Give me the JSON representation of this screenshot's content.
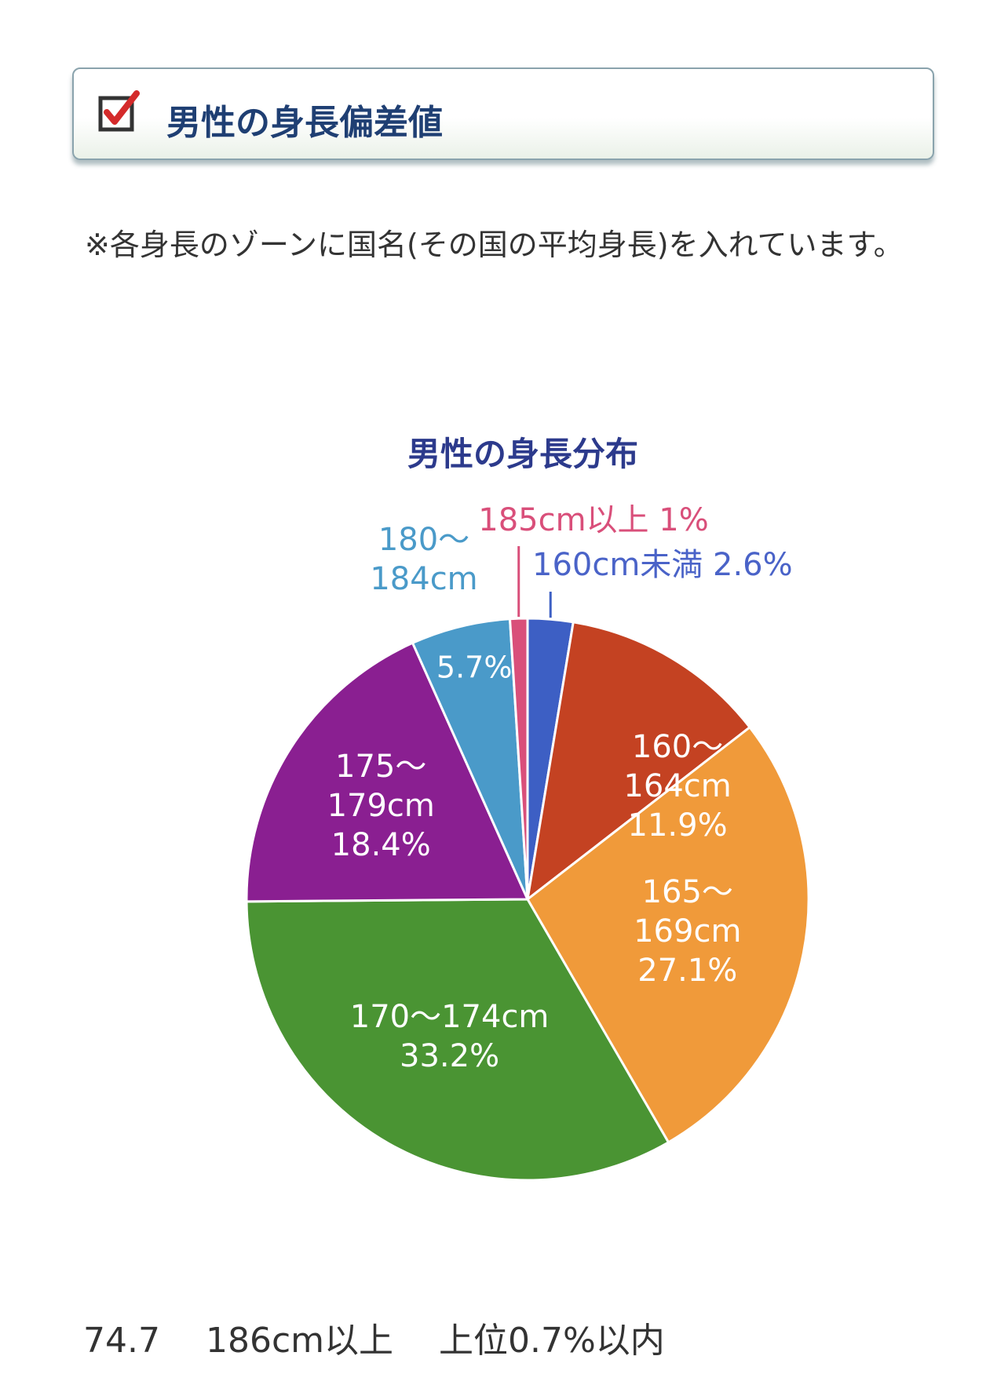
{
  "heading": {
    "title": "男性の身長偏差値",
    "icon": "checkbox-checked-icon"
  },
  "note": "※各身長のゾーンに国名(その国の平均身長)を入れています。",
  "chart_data": {
    "type": "pie",
    "title": "男性の身長分布",
    "slices": [
      {
        "label_lines": [
          "160cm未満 2.6%"
        ],
        "value": 2.6,
        "color": "#3d5fc4",
        "label_color": "#4a63c8",
        "label_outside": true
      },
      {
        "label_lines": [
          "160～",
          "164cm",
          "11.9%"
        ],
        "value": 11.9,
        "color": "#c44222",
        "label_color": "#ffffff",
        "label_outside": false
      },
      {
        "label_lines": [
          "165～",
          "169cm",
          "27.1%"
        ],
        "value": 27.1,
        "color": "#f09a3a",
        "label_color": "#ffffff",
        "label_outside": false
      },
      {
        "label_lines": [
          "170～174cm",
          "33.2%"
        ],
        "value": 33.2,
        "color": "#4a9433",
        "label_color": "#ffffff",
        "label_outside": false
      },
      {
        "label_lines": [
          "175～",
          "179cm",
          "18.4%"
        ],
        "value": 18.4,
        "color": "#8a1f91",
        "label_color": "#ffffff",
        "label_outside": false
      },
      {
        "label_lines": [
          "180～",
          "184cm"
        ],
        "value_label": "5.7%",
        "value": 5.7,
        "color": "#4a9ac9",
        "label_color": "#4a9ac9",
        "label_outside": true
      },
      {
        "label_lines": [
          "185cm以上 1%"
        ],
        "value": 1,
        "color": "#d94f7a",
        "label_color": "#d94f7a",
        "label_outside": true
      }
    ]
  },
  "footer": {
    "score": "74.7",
    "height": "186cm以上",
    "rank": "上位0.7%以内"
  }
}
